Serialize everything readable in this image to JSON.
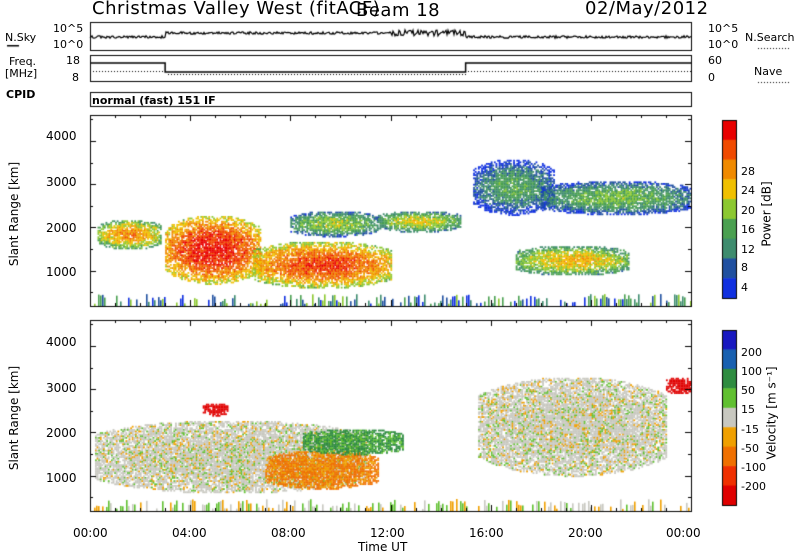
{
  "header": {
    "station": "Christmas Valley West (fitACF)",
    "beam": "Beam 18",
    "date": "02/May/2012"
  },
  "meta_panels": {
    "nsky_label": "N.Sky",
    "nsky_ticks": [
      "10^5",
      "10^0"
    ],
    "nsearch_label": "N.Search",
    "nsearch_ticks": [
      "10^5",
      "10^0"
    ],
    "freq_label_top": "Freq.",
    "freq_label_bottom": "[MHz]",
    "freq_ticks": [
      "18",
      "8"
    ],
    "nave_label": "Nave",
    "nave_ticks": [
      "60",
      "0"
    ],
    "cpid_label": "CPID",
    "cpid_text": "normal (fast) 151 IF"
  },
  "colors": {
    "power": [
      "#1030e0",
      "#2050a0",
      "#3e8c6e",
      "#4aa050",
      "#8cc830",
      "#f0c000",
      "#f08a00",
      "#f04a00",
      "#e80000"
    ],
    "velocity": [
      "#1818c0",
      "#1860b0",
      "#2e8c40",
      "#60c030",
      "#c8c8c0",
      "#f0a000",
      "#f07000",
      "#f03000",
      "#e00000"
    ]
  },
  "chart_data": [
    {
      "type": "heatmap",
      "panel": "power",
      "xlabel": "",
      "ylabel": "Slant Range [km]",
      "ylim": [
        180,
        4600
      ],
      "yticks": [
        "4000",
        "3000",
        "2000",
        "1000"
      ],
      "xlim": [
        0,
        24
      ],
      "colorbar": {
        "label": "Power [dB]",
        "ticks": [
          "28",
          "24",
          "20",
          "16",
          "12",
          "8",
          "4"
        ]
      },
      "features": [
        {
          "t0": 0.3,
          "t1": 2.8,
          "r0": 1500,
          "r1": 2200,
          "value_db": 22
        },
        {
          "t0": 3.0,
          "t1": 6.8,
          "r0": 700,
          "r1": 2300,
          "value_db": 28
        },
        {
          "t0": 6.5,
          "t1": 12.0,
          "r0": 600,
          "r1": 1700,
          "value_db": 26
        },
        {
          "t0": 8.0,
          "t1": 11.5,
          "r0": 1800,
          "r1": 2400,
          "value_db": 16
        },
        {
          "t0": 11.5,
          "t1": 14.8,
          "r0": 1900,
          "r1": 2400,
          "value_db": 18
        },
        {
          "t0": 15.3,
          "t1": 18.5,
          "r0": 2300,
          "r1": 3600,
          "value_db": 12
        },
        {
          "t0": 17.0,
          "t1": 21.5,
          "r0": 900,
          "r1": 1600,
          "value_db": 20
        },
        {
          "t0": 18.0,
          "t1": 24.0,
          "r0": 2300,
          "r1": 3100,
          "value_db": 14
        }
      ]
    },
    {
      "type": "heatmap",
      "panel": "velocity",
      "xlabel": "Time UT",
      "ylabel": "Slant Range [km]",
      "ylim": [
        180,
        4600
      ],
      "yticks": [
        "4000",
        "3000",
        "2000",
        "1000"
      ],
      "xlim": [
        0,
        24
      ],
      "xticks": [
        "00:00",
        "04:00",
        "08:00",
        "12:00",
        "16:00",
        "20:00",
        "00:00"
      ],
      "colorbar": {
        "label": "Velocity [m s⁻¹]",
        "ticks": [
          "200",
          "100",
          "50",
          "15",
          "-15",
          "-50",
          "-100",
          "-200"
        ]
      },
      "features": [
        {
          "t0": 0.2,
          "t1": 11.0,
          "r0": 600,
          "r1": 2300,
          "value_ms": 0
        },
        {
          "t0": 7.0,
          "t1": 11.5,
          "r0": 700,
          "r1": 1600,
          "value_ms": -40
        },
        {
          "t0": 8.5,
          "t1": 12.5,
          "r0": 1500,
          "r1": 2100,
          "value_ms": 40
        },
        {
          "t0": 15.5,
          "t1": 23.0,
          "r0": 1000,
          "r1": 3300,
          "value_ms": 0
        },
        {
          "t0": 23.0,
          "t1": 24.0,
          "r0": 2900,
          "r1": 3300,
          "value_ms": -200
        },
        {
          "t0": 4.5,
          "t1": 5.5,
          "r0": 2400,
          "r1": 2700,
          "value_ms": -200
        }
      ]
    }
  ]
}
